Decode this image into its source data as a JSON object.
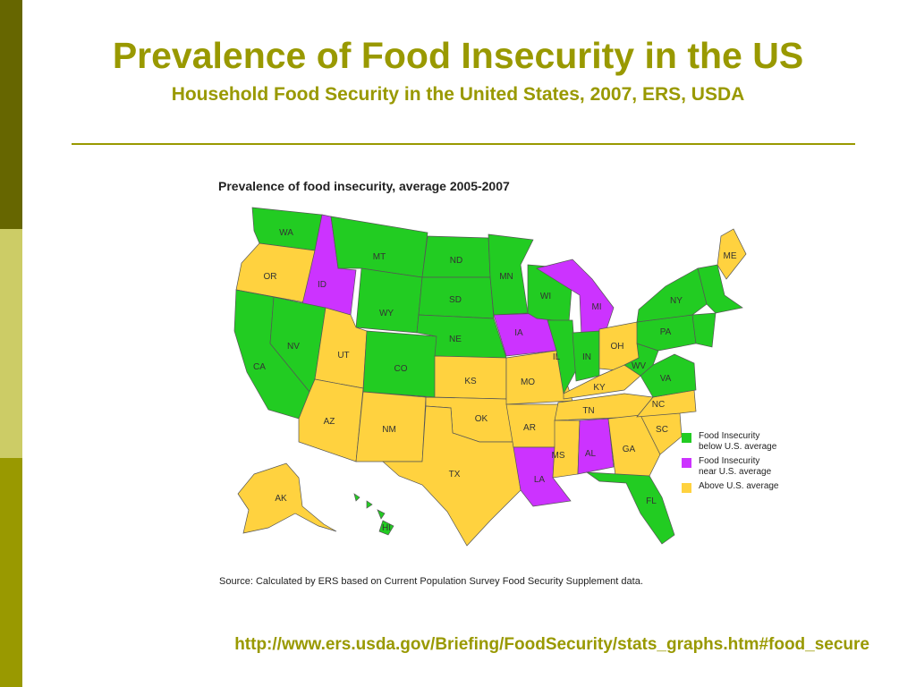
{
  "header": {
    "title": "Prevalence of Food Insecurity in the US",
    "subtitle": "Household Food Security in the United States, 2007, ERS, USDA"
  },
  "map": {
    "title": "Prevalence of food insecurity, average 2005-2007",
    "source": "Source: Calculated by ERS based on Current Population Survey Food Security Supplement data.",
    "legend": [
      {
        "label": "Food Insecurity below U.S. average",
        "color": "#22cc22"
      },
      {
        "label": "Food Insecurity near U.S. average",
        "color": "#cc33ff"
      },
      {
        "label": "Above U.S. average",
        "color": "#ffd23f"
      }
    ],
    "categories": {
      "below": "#22cc22",
      "near": "#cc33ff",
      "above": "#ffd23f"
    },
    "states": {
      "WA": "below",
      "OR": "above",
      "ID": "near",
      "MT": "below",
      "WY": "below",
      "ND": "below",
      "SD": "below",
      "NE": "below",
      "MN": "below",
      "IA": "near",
      "WI": "below",
      "MI": "near",
      "IL": "below",
      "IN": "below",
      "OH": "above",
      "CA": "below",
      "NV": "below",
      "UT": "above",
      "CO": "below",
      "AZ": "above",
      "NM": "above",
      "KS": "above",
      "MO": "above",
      "OK": "above",
      "TX": "above",
      "AR": "above",
      "LA": "near",
      "MS": "above",
      "AL": "near",
      "GA": "above",
      "FL": "below",
      "SC": "above",
      "NC": "above",
      "TN": "above",
      "KY": "above",
      "WV": "below",
      "VA": "below",
      "PA": "below",
      "NY": "below",
      "ME": "above",
      "NE_REGION": "below",
      "AK": "above",
      "HI": "below"
    },
    "labels": [
      "WA",
      "OR",
      "ID",
      "MT",
      "WY",
      "ND",
      "SD",
      "NE",
      "MN",
      "IA",
      "WI",
      "MI",
      "IL",
      "IN",
      "OH",
      "CA",
      "NV",
      "UT",
      "CO",
      "AZ",
      "NM",
      "KS",
      "MO",
      "OK",
      "TX",
      "AR",
      "LA",
      "MS",
      "AL",
      "GA",
      "FL",
      "SC",
      "NC",
      "TN",
      "KY",
      "WV",
      "VA",
      "PA",
      "NY",
      "ME",
      "AK",
      "HI"
    ]
  },
  "footer": {
    "url": "http://www.ers.usda.gov/Briefing/FoodSecurity/stats_graphs.htm#food_secure"
  },
  "theme": {
    "sidebar_colors": [
      "#666600",
      "#cccc66",
      "#999900"
    ],
    "accent": "#999900"
  }
}
